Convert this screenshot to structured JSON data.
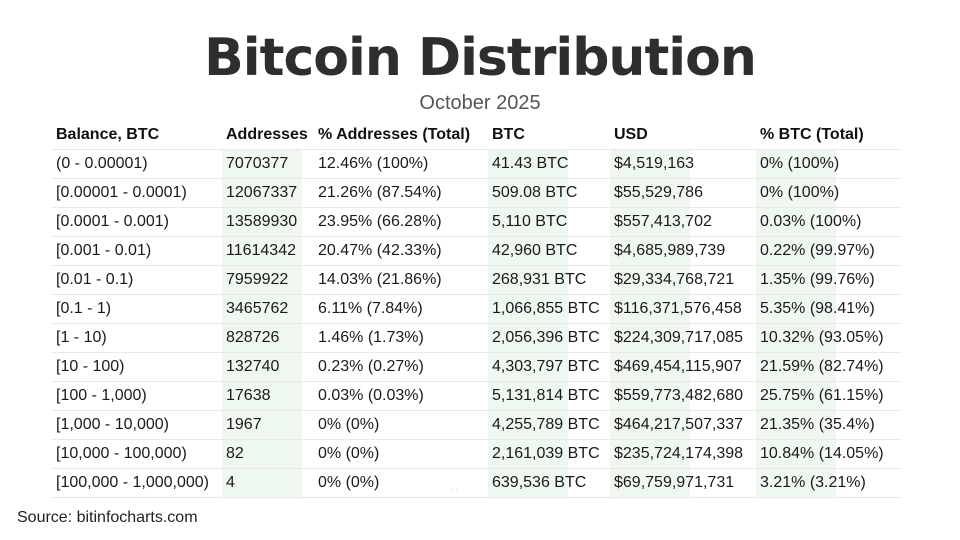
{
  "title": "Bitcoin Distribution",
  "subtitle": "October 2025",
  "source": "Source: bitinfocharts.com",
  "table": {
    "headers": [
      "Balance, BTC",
      "Addresses",
      "% Addresses (Total)",
      "BTC",
      "USD",
      "% BTC (Total)"
    ],
    "rows": [
      [
        "(0 - 0.00001)",
        "7070377",
        "12.46% (100%)",
        "41.43 BTC",
        "$4,519,163",
        "0% (100%)"
      ],
      [
        "[0.00001 - 0.0001)",
        "12067337",
        "21.26% (87.54%)",
        "509.08 BTC",
        "$55,529,786",
        "0% (100%)"
      ],
      [
        "[0.0001 - 0.001)",
        "13589930",
        "23.95% (66.28%)",
        "5,110 BTC",
        "$557,413,702",
        "0.03% (100%)"
      ],
      [
        "[0.001 - 0.01)",
        "11614342",
        "20.47% (42.33%)",
        "42,960 BTC",
        "$4,685,989,739",
        "0.22% (99.97%)"
      ],
      [
        "[0.01 - 0.1)",
        "7959922",
        "14.03% (21.86%)",
        "268,931 BTC",
        "$29,334,768,721",
        "1.35% (99.76%)"
      ],
      [
        "[0.1 - 1)",
        "3465762",
        "6.11% (7.84%)",
        "1,066,855 BTC",
        "$116,371,576,458",
        "5.35% (98.41%)"
      ],
      [
        "[1 - 10)",
        "828726",
        "1.46% (1.73%)",
        "2,056,396 BTC",
        "$224,309,717,085",
        "10.32% (93.05%)"
      ],
      [
        "[10 - 100)",
        "132740",
        "0.23% (0.27%)",
        "4,303,797 BTC",
        "$469,454,115,907",
        "21.59% (82.74%)"
      ],
      [
        "[100 - 1,000)",
        "17638",
        "0.03% (0.03%)",
        "5,131,814 BTC",
        "$559,773,482,680",
        "25.75% (61.15%)"
      ],
      [
        "[1,000 - 10,000)",
        "1967",
        "0% (0%)",
        "4,255,789 BTC",
        "$464,217,507,337",
        "21.35% (35.4%)"
      ],
      [
        "[10,000 - 100,000)",
        "82",
        "0% (0%)",
        "2,161,039 BTC",
        "$235,724,174,398",
        "10.84% (14.05%)"
      ],
      [
        "[100,000 - 1,000,000)",
        "4",
        "0% (0%)",
        "639,536 BTC",
        "$69,759,971,731",
        "3.21% (3.21%)"
      ]
    ]
  },
  "colors": {
    "title": "#2e2e2e",
    "subtitle": "#555555",
    "cell_shade": "#eef8f1"
  }
}
